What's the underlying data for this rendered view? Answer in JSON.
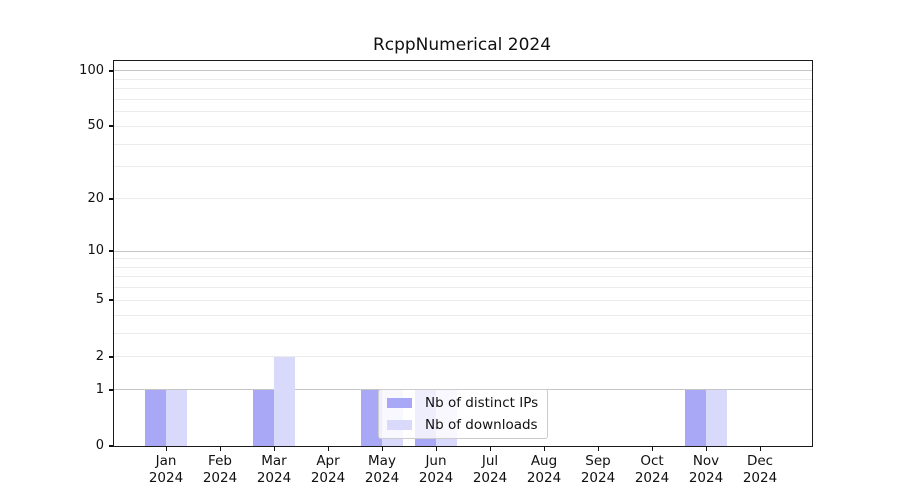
{
  "title": "RcppNumerical 2024",
  "chart_data": {
    "type": "bar",
    "title": "RcppNumerical 2024",
    "xlabel": "",
    "ylabel": "",
    "year": "2024",
    "categories": [
      "Jan",
      "Feb",
      "Mar",
      "Apr",
      "May",
      "Jun",
      "Jul",
      "Aug",
      "Sep",
      "Oct",
      "Nov",
      "Dec"
    ],
    "series": [
      {
        "name": "Nb of distinct IPs",
        "color": "#a8a8f6",
        "values": [
          1,
          0,
          1,
          0,
          1,
          1,
          0,
          0,
          0,
          0,
          1,
          0
        ]
      },
      {
        "name": "Nb of downloads",
        "color": "#d9d9fb",
        "values": [
          1,
          0,
          2,
          0,
          1,
          1,
          0,
          0,
          0,
          0,
          1,
          0
        ]
      }
    ],
    "yscale": "log1p",
    "ylim": [
      0,
      113
    ],
    "y_ticks": [
      0,
      1,
      2,
      5,
      10,
      20,
      50,
      100
    ],
    "y_major_gridlines": [
      1,
      10,
      100
    ],
    "y_minor_gridlines": [
      2,
      3,
      4,
      5,
      6,
      7,
      8,
      9,
      20,
      30,
      40,
      50,
      60,
      70,
      80,
      90
    ],
    "grid": "horizontal",
    "legend_position": "lower center",
    "background_color": "#ffffff",
    "spine_color": "#1a1a1a",
    "major_grid_color": "#c6c6c6",
    "minor_grid_color": "#ebebeb"
  }
}
